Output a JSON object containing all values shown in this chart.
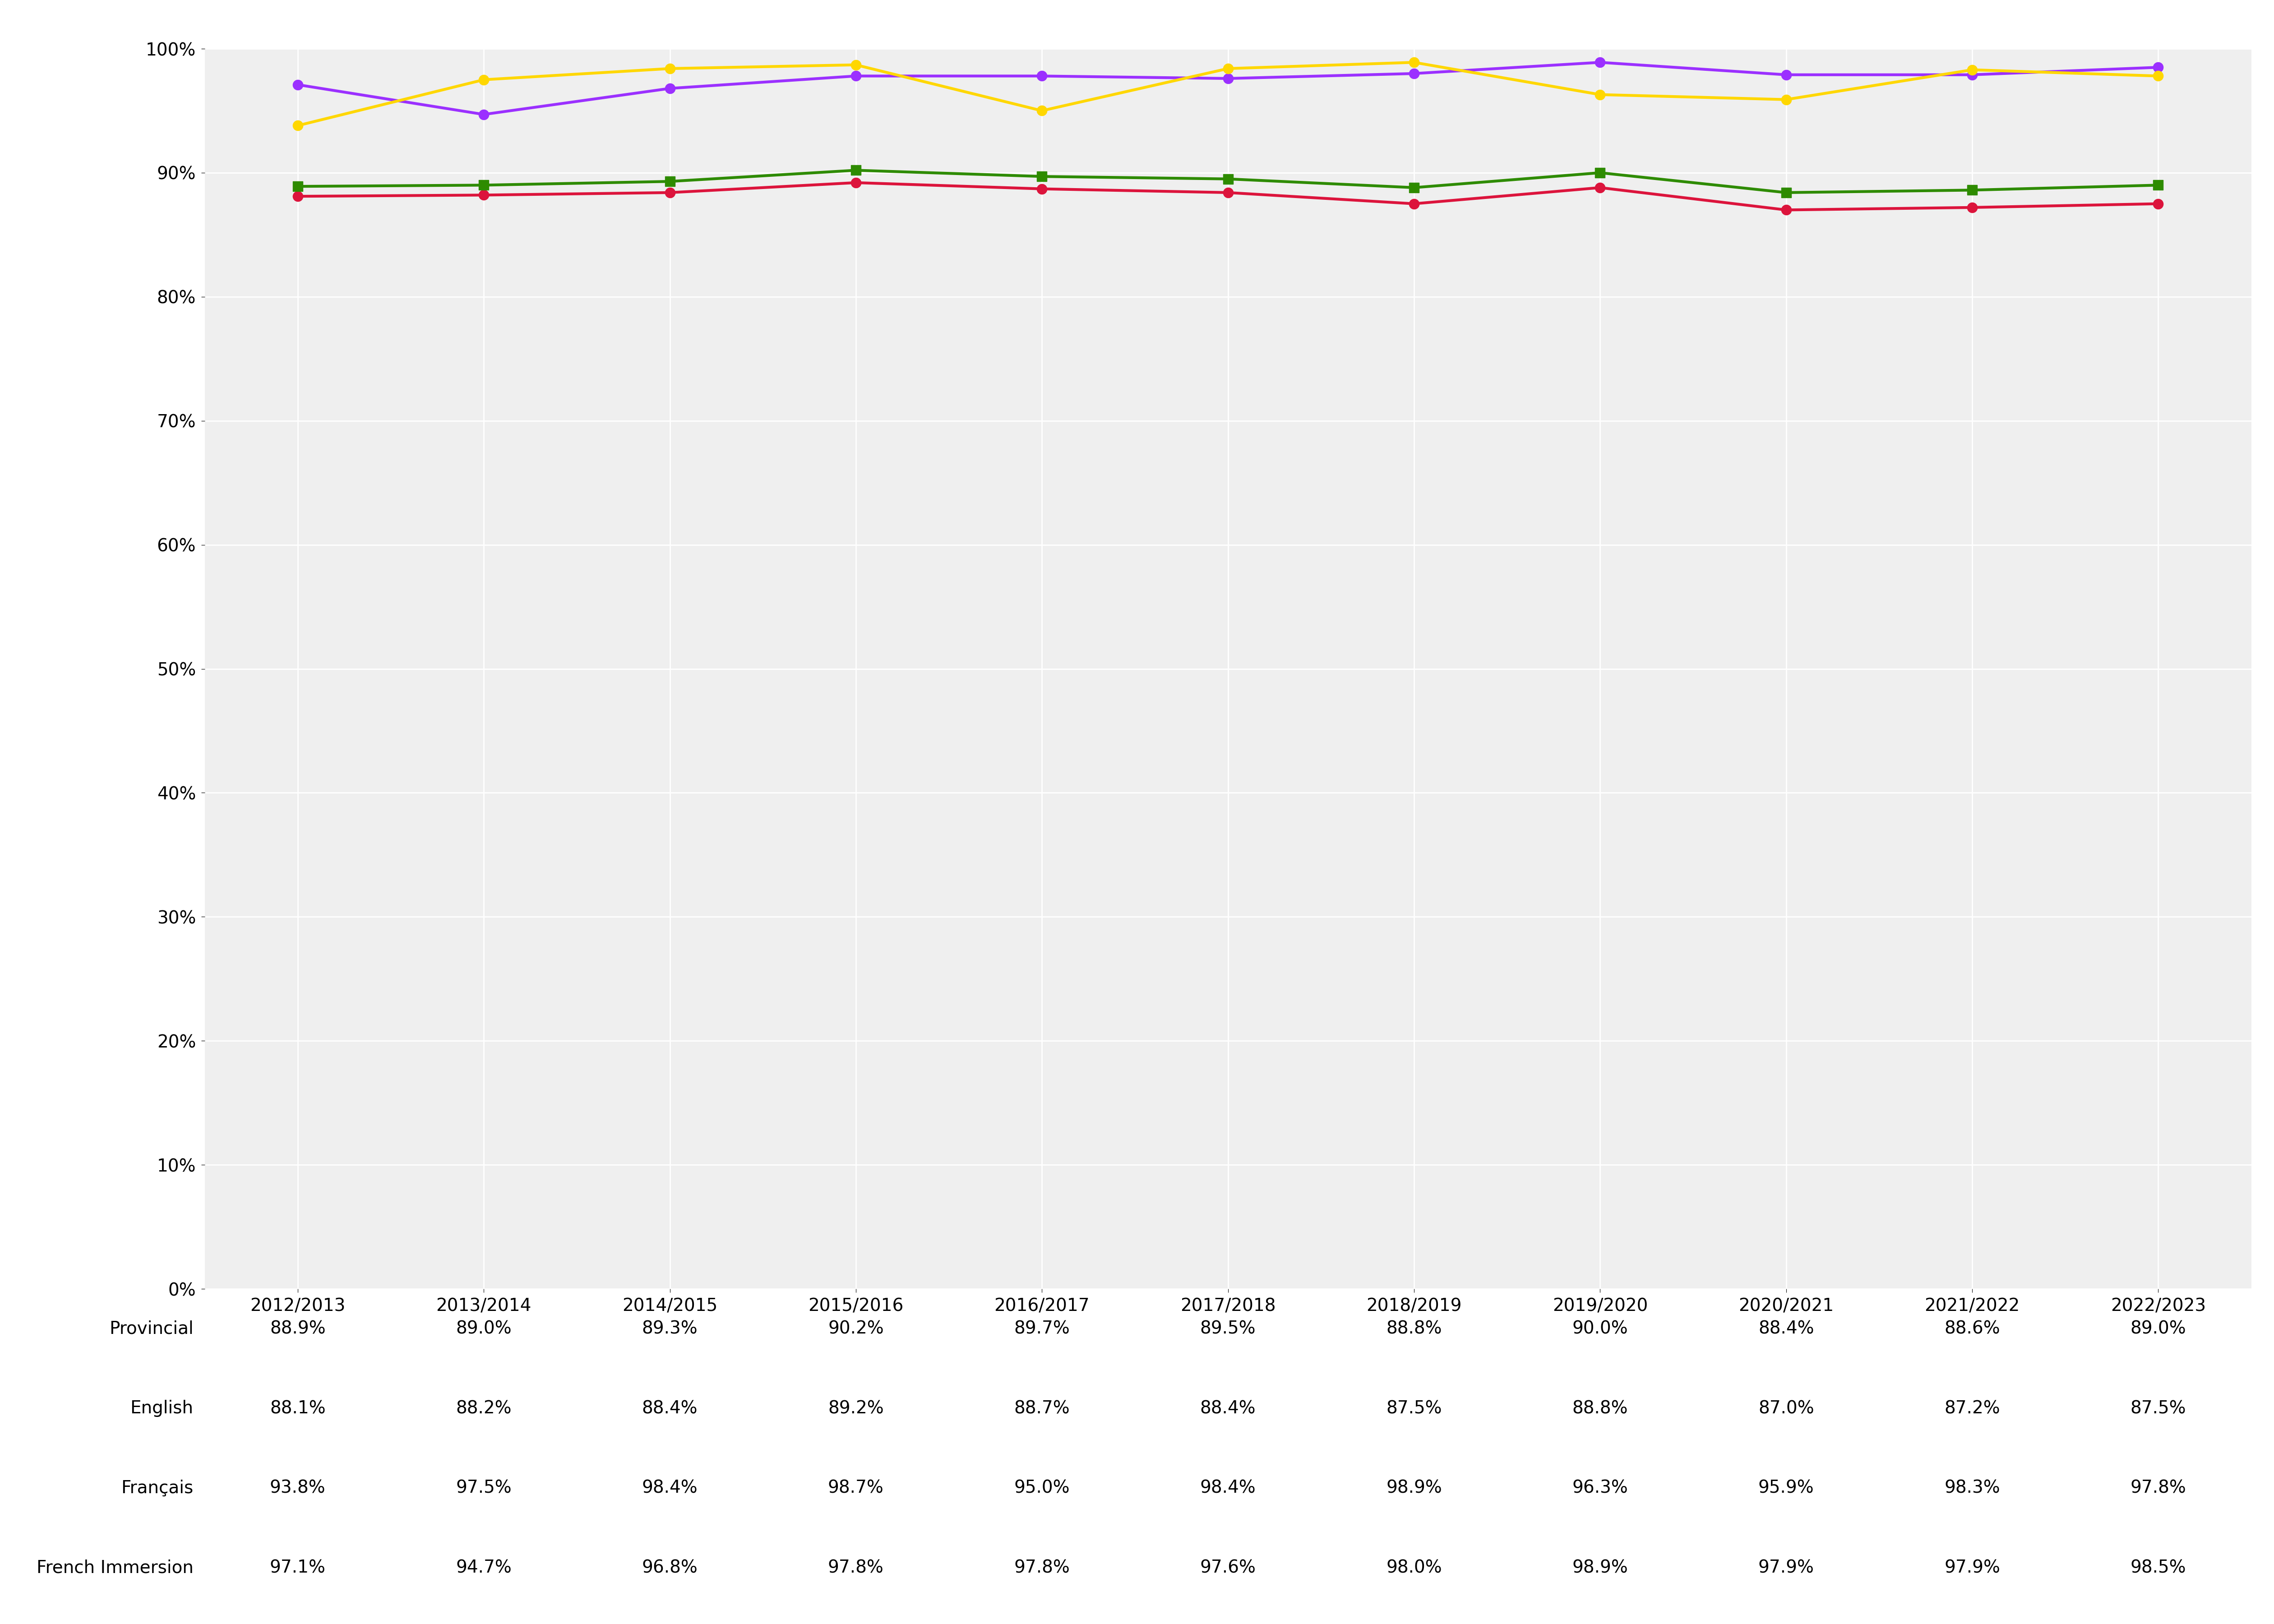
{
  "years": [
    "2012/2013",
    "2013/2014",
    "2014/2015",
    "2015/2016",
    "2016/2017",
    "2017/2018",
    "2018/2019",
    "2019/2020",
    "2020/2021",
    "2021/2022",
    "2022/2023"
  ],
  "series": {
    "Provincial": {
      "values": [
        0.889,
        0.89,
        0.893,
        0.902,
        0.897,
        0.895,
        0.888,
        0.9,
        0.884,
        0.886,
        0.89
      ],
      "color": "#2e8b00",
      "marker": "s",
      "zorder": 3
    },
    "French Immersion": {
      "values": [
        0.971,
        0.947,
        0.968,
        0.978,
        0.978,
        0.976,
        0.98,
        0.989,
        0.979,
        0.979,
        0.985
      ],
      "color": "#9b30ff",
      "marker": "o",
      "zorder": 4
    },
    "Français": {
      "values": [
        0.938,
        0.975,
        0.984,
        0.987,
        0.95,
        0.984,
        0.989,
        0.963,
        0.959,
        0.983,
        0.978
      ],
      "color": "#ffd700",
      "marker": "o",
      "zorder": 5
    },
    "English": {
      "values": [
        0.881,
        0.882,
        0.884,
        0.892,
        0.887,
        0.884,
        0.875,
        0.888,
        0.87,
        0.872,
        0.875
      ],
      "color": "#dc143c",
      "marker": "o",
      "zorder": 2
    }
  },
  "legend_order": [
    "Provincial",
    "French Immersion",
    "Français",
    "English"
  ],
  "table_rows": {
    "Provincial": [
      "88.9%",
      "89.0%",
      "89.3%",
      "90.2%",
      "89.7%",
      "89.5%",
      "88.8%",
      "90.0%",
      "88.4%",
      "88.6%",
      "89.0%"
    ],
    "English": [
      "88.1%",
      "88.2%",
      "88.4%",
      "89.2%",
      "88.7%",
      "88.4%",
      "87.5%",
      "88.8%",
      "87.0%",
      "87.2%",
      "87.5%"
    ],
    "Français": [
      "93.8%",
      "97.5%",
      "98.4%",
      "98.7%",
      "95.0%",
      "98.4%",
      "98.9%",
      "96.3%",
      "95.9%",
      "98.3%",
      "97.8%"
    ],
    "French Immersion": [
      "97.1%",
      "94.7%",
      "96.8%",
      "97.8%",
      "97.8%",
      "97.6%",
      "98.0%",
      "98.9%",
      "97.9%",
      "97.9%",
      "98.5%"
    ]
  },
  "table_row_order": [
    "Provincial",
    "English",
    "Français",
    "French Immersion"
  ],
  "ylim": [
    0,
    1.0
  ],
  "yticks": [
    0.0,
    0.1,
    0.2,
    0.3,
    0.4,
    0.5,
    0.6,
    0.7,
    0.8,
    0.9,
    1.0
  ],
  "background_color": "#ffffff",
  "plot_bg_color": "#efefef",
  "grid_color": "#ffffff",
  "tick_fontsize": 28,
  "legend_fontsize": 34,
  "table_label_fontsize": 28,
  "table_value_fontsize": 28,
  "line_width": 4.5,
  "marker_size": 16
}
